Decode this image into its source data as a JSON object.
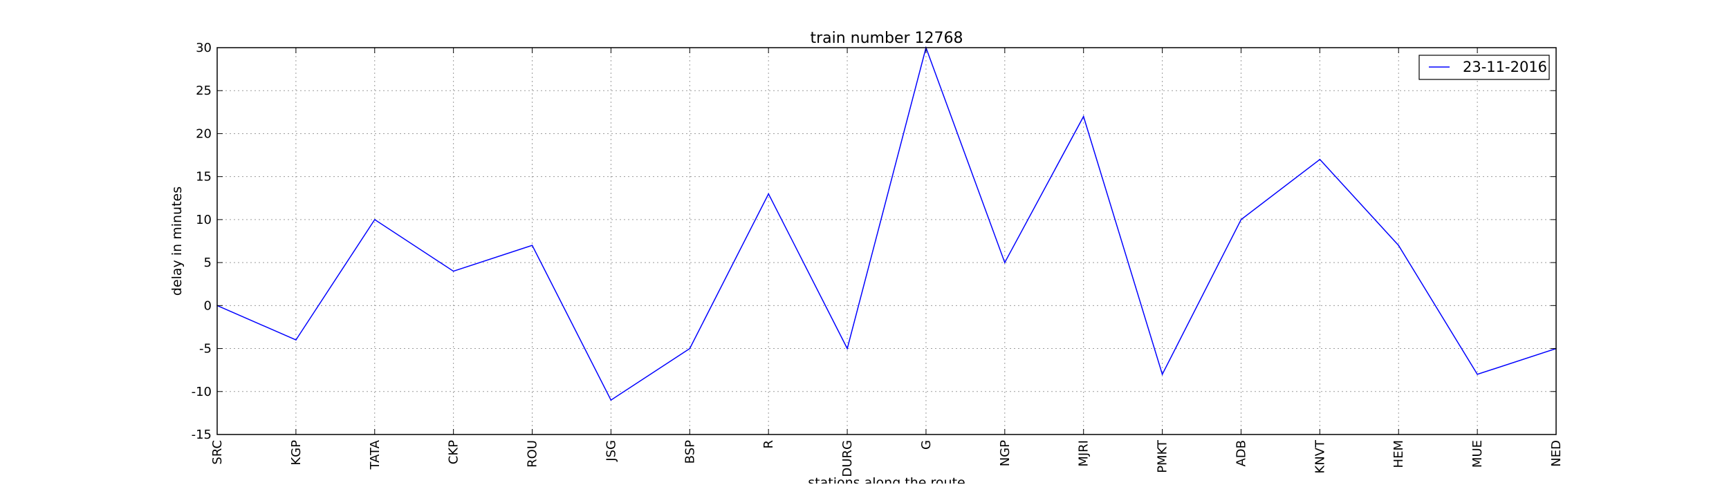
{
  "chart_data": {
    "type": "line",
    "title": "train number 12768",
    "xlabel": "stations along the route",
    "ylabel": "delay in minutes",
    "categories": [
      "SRC",
      "KGP",
      "TATA",
      "CKP",
      "ROU",
      "JSG",
      "BSP",
      "R",
      "DURG",
      "G",
      "NGP",
      "MJRI",
      "PMKT",
      "ADB",
      "KNVT",
      "HEM",
      "MUE",
      "NED"
    ],
    "series": [
      {
        "name": "23-11-2016",
        "color": "#0000ff",
        "values": [
          0,
          -4,
          10,
          4,
          7,
          -11,
          -5,
          13,
          -5,
          30,
          5,
          22,
          -8,
          10,
          17,
          7,
          -8,
          -5
        ]
      }
    ],
    "ylim": [
      -15,
      30
    ],
    "yticks": [
      -15,
      -10,
      -5,
      0,
      5,
      10,
      15,
      20,
      25,
      30
    ],
    "grid": true,
    "legend_position": "top-right"
  }
}
